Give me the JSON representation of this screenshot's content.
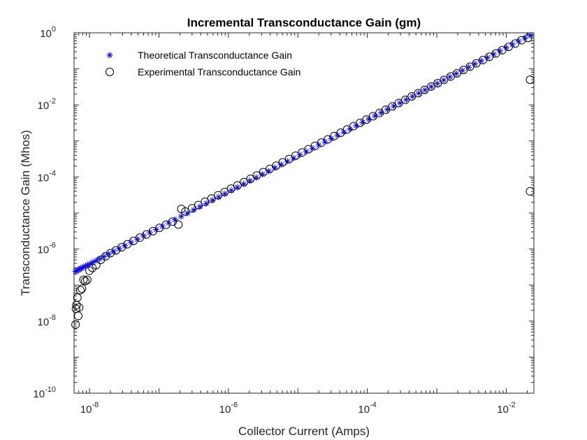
{
  "chart_data": {
    "type": "scatter",
    "title": "Incremental Transconductance Gain (gm)",
    "xlabel": "Collector Current (Amps)",
    "ylabel": "Transconductance Gain (Mhos)",
    "xscale": "log",
    "yscale": "log",
    "xlim": [
      6e-09,
      0.025
    ],
    "ylim": [
      1e-10,
      1
    ],
    "x_ticks": [
      {
        "value": 1e-08,
        "base": "10",
        "exp": "-8"
      },
      {
        "value": 1e-06,
        "base": "10",
        "exp": "-6"
      },
      {
        "value": 0.0001,
        "base": "10",
        "exp": "-4"
      },
      {
        "value": 0.01,
        "base": "10",
        "exp": "-2"
      }
    ],
    "y_ticks": [
      {
        "value": 1e-10,
        "base": "10",
        "exp": "-10"
      },
      {
        "value": 1e-08,
        "base": "10",
        "exp": "-8"
      },
      {
        "value": 1e-06,
        "base": "10",
        "exp": "-6"
      },
      {
        "value": 0.0001,
        "base": "10",
        "exp": "-4"
      },
      {
        "value": 0.01,
        "base": "10",
        "exp": "-2"
      },
      {
        "value": 1,
        "base": "10",
        "exp": "0"
      }
    ],
    "grid": false,
    "legend_position": "top-left",
    "series": [
      {
        "name": "Theoretical Transconductance Gain",
        "marker": "asterisk",
        "color": "#0000ff",
        "x": [
          6.3e-09,
          6.6e-09,
          6.9e-09,
          7.2e-09,
          7.5e-09,
          7.9e-09,
          8.3e-09,
          8.8e-09,
          9.4e-09,
          1.02e-08,
          1.12e-08,
          1.25e-08,
          1.41e-08,
          1.62e-08,
          1.9e-08,
          2.24e-08,
          2.69e-08,
          3.24e-08,
          3.98e-08,
          4.9e-08,
          6.03e-08,
          7.41e-08,
          9.12e-08,
          1.12e-07,
          1.38e-07,
          1.7e-07,
          2.09e-07,
          2.57e-07,
          3.16e-07,
          3.89e-07,
          4.79e-07,
          5.89e-07,
          7.24e-07,
          8.91e-07,
          1.1e-06,
          1.35e-06,
          1.66e-06,
          2.04e-06,
          2.51e-06,
          3.09e-06,
          3.8e-06,
          4.68e-06,
          5.75e-06,
          7.08e-06,
          8.71e-06,
          1.07e-05,
          1.32e-05,
          1.62e-05,
          2e-05,
          2.45e-05,
          3.02e-05,
          3.72e-05,
          4.57e-05,
          5.62e-05,
          6.92e-05,
          8.51e-05,
          0.000105,
          0.000129,
          0.000158,
          0.000195,
          0.00024,
          0.000295,
          0.000363,
          0.000447,
          0.00055,
          0.000676,
          0.000832,
          0.00102,
          0.00126,
          0.00155,
          0.00191,
          0.00234,
          0.00288,
          0.00355,
          0.00437,
          0.00537,
          0.00661,
          0.00813,
          0.01,
          0.0123,
          0.0151,
          0.0186,
          0.022
        ],
        "y": [
          2.4e-07,
          2.5e-07,
          2.6e-07,
          2.8e-07,
          2.9e-07,
          3e-07,
          3.2e-07,
          3.4e-07,
          3.6e-07,
          3.9e-07,
          4.3e-07,
          4.8e-07,
          5.4e-07,
          6.2e-07,
          7.3e-07,
          8.6e-07,
          1.03e-06,
          1.25e-06,
          1.53e-06,
          1.88e-06,
          2.32e-06,
          2.85e-06,
          3.5e-06,
          4.31e-06,
          5.31e-06,
          6.54e-06,
          8.04e-06,
          9.88e-06,
          1.22e-05,
          1.5e-05,
          1.84e-05,
          2.27e-05,
          2.78e-05,
          3.43e-05,
          4.23e-05,
          5.19e-05,
          6.38e-05,
          7.85e-05,
          9.65e-05,
          0.000119,
          0.000146,
          0.00018,
          0.000221,
          0.000272,
          0.000335,
          0.000412,
          0.000508,
          0.000623,
          0.000769,
          0.000942,
          0.00116,
          0.00143,
          0.00176,
          0.00216,
          0.00266,
          0.00327,
          0.00404,
          0.00496,
          0.00608,
          0.0075,
          0.00923,
          0.0113,
          0.014,
          0.0172,
          0.0212,
          0.026,
          0.032,
          0.0392,
          0.0485,
          0.0596,
          0.0735,
          0.09,
          0.111,
          0.137,
          0.168,
          0.207,
          0.254,
          0.313,
          0.385,
          0.473,
          0.581,
          0.715,
          0.846
        ]
      },
      {
        "name": "Experimental Transconductance Gain",
        "marker": "circle",
        "color": "#000000",
        "x": [
          6.3e-09,
          6.4e-09,
          6.5e-09,
          6.7e-09,
          6.9e-09,
          7.1e-09,
          7.4e-09,
          7.8e-09,
          8.2e-09,
          8.7e-09,
          9.3e-09,
          1e-08,
          1.1e-08,
          1.25e-08,
          1.45e-08,
          1.7e-08,
          2e-08,
          2.4e-08,
          2.9e-08,
          3.5e-08,
          4.3e-08,
          5.3e-08,
          6.6e-08,
          8.2e-08,
          1.02e-07,
          1.27e-07,
          1.58e-07,
          1.9e-07,
          2.1e-07,
          2.4e-07,
          3e-07,
          3.7e-07,
          4.6e-07,
          5.7e-07,
          7.1e-07,
          8.8e-07,
          1.09e-06,
          1.35e-06,
          1.67e-06,
          2.07e-06,
          2.56e-06,
          3.17e-06,
          3.93e-06,
          4.87e-06,
          6.03e-06,
          7.47e-06,
          9.25e-06,
          1.15e-05,
          1.42e-05,
          1.76e-05,
          2.18e-05,
          2.7e-05,
          3.34e-05,
          4.14e-05,
          5.13e-05,
          6.35e-05,
          7.87e-05,
          9.75e-05,
          0.000121,
          0.00015,
          0.000185,
          0.00023,
          0.000284,
          0.000352,
          0.000436,
          0.00054,
          0.000669,
          0.000829,
          0.00103,
          0.00127,
          0.00158,
          0.00195,
          0.00242,
          0.003,
          0.00371,
          0.0046,
          0.0057,
          0.00706,
          0.00874,
          0.0108,
          0.0134,
          0.0166,
          0.0205,
          0.022,
          0.022
        ],
        "y": [
          8e-09,
          2.2e-08,
          2.8e-08,
          4.5e-08,
          1.4e-08,
          2.4e-08,
          7.2e-08,
          8e-08,
          1.4e-07,
          1.3e-07,
          1.4e-07,
          2.5e-07,
          3e-07,
          3.6e-07,
          5e-07,
          6.3e-07,
          7.7e-07,
          9.2e-07,
          1.12e-06,
          1.36e-06,
          1.68e-06,
          2.07e-06,
          2.54e-06,
          3.14e-06,
          3.87e-06,
          4.74e-06,
          5.8e-06,
          4.8e-06,
          1.3e-05,
          1.1e-05,
          1.35e-05,
          1.66e-05,
          2.05e-05,
          2.52e-05,
          3.11e-05,
          3.84e-05,
          4.73e-05,
          5.84e-05,
          7.2e-05,
          8.87e-05,
          0.00011,
          0.000135,
          0.000167,
          0.000206,
          0.000254,
          0.000314,
          0.000388,
          0.000479,
          0.00059,
          0.00073,
          0.0009,
          0.00111,
          0.00137,
          0.00169,
          0.00209,
          0.00258,
          0.00318,
          0.00393,
          0.00485,
          0.00599,
          0.0074,
          0.00914,
          0.0113,
          0.0139,
          0.0172,
          0.0212,
          0.0262,
          0.0324,
          0.04,
          0.0494,
          0.061,
          0.0753,
          0.093,
          0.115,
          0.142,
          0.175,
          0.216,
          0.267,
          0.33,
          0.407,
          0.503,
          0.621,
          0.72,
          0.05,
          4e-05
        ]
      }
    ]
  }
}
